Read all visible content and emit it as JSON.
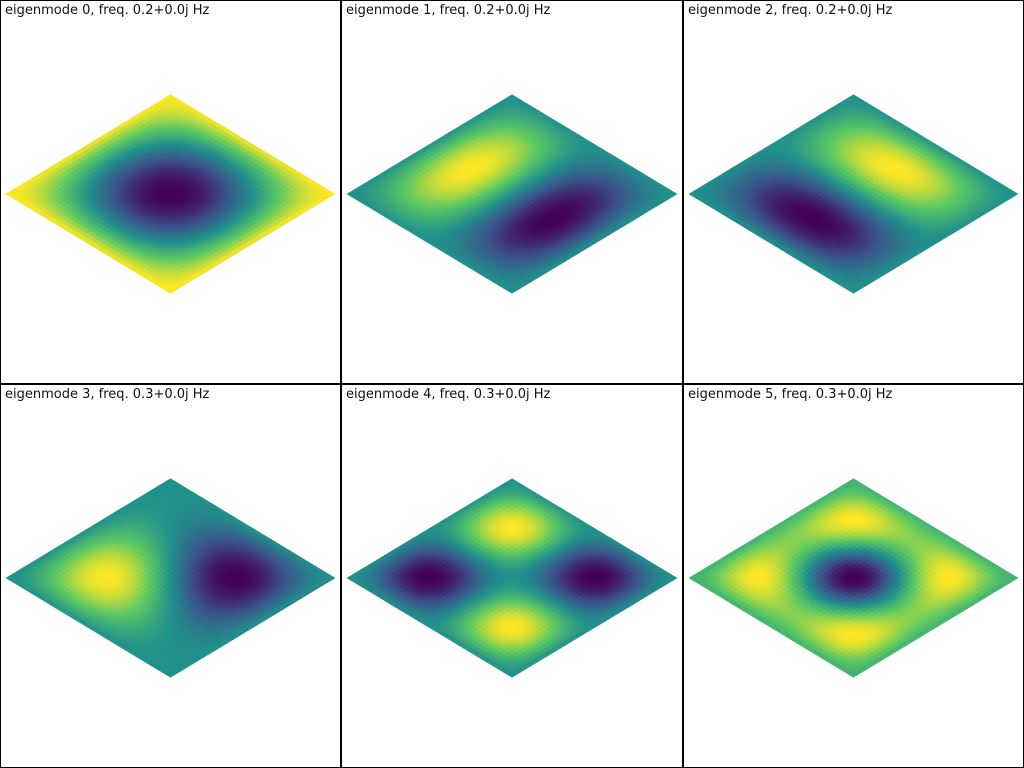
{
  "panels": [
    {
      "title": "eigenmode 0, freq. 0.2+0.0j Hz",
      "mode": [
        1,
        1
      ]
    },
    {
      "title": "eigenmode 1, freq. 0.2+0.0j Hz",
      "mode": [
        2,
        1
      ]
    },
    {
      "title": "eigenmode 2, freq. 0.2+0.0j Hz",
      "mode": [
        1,
        2
      ]
    },
    {
      "title": "eigenmode 3, freq. 0.3+0.0j Hz",
      "mode": "sum12"
    },
    {
      "title": "eigenmode 4, freq. 0.3+0.0j Hz",
      "mode": [
        2,
        2
      ]
    },
    {
      "title": "eigenmode 5, freq. 0.3+0.0j Hz",
      "mode": "diff13"
    }
  ],
  "colormap": [
    "#440154",
    "#3b528b",
    "#21918c",
    "#5ec962",
    "#fde725"
  ]
}
